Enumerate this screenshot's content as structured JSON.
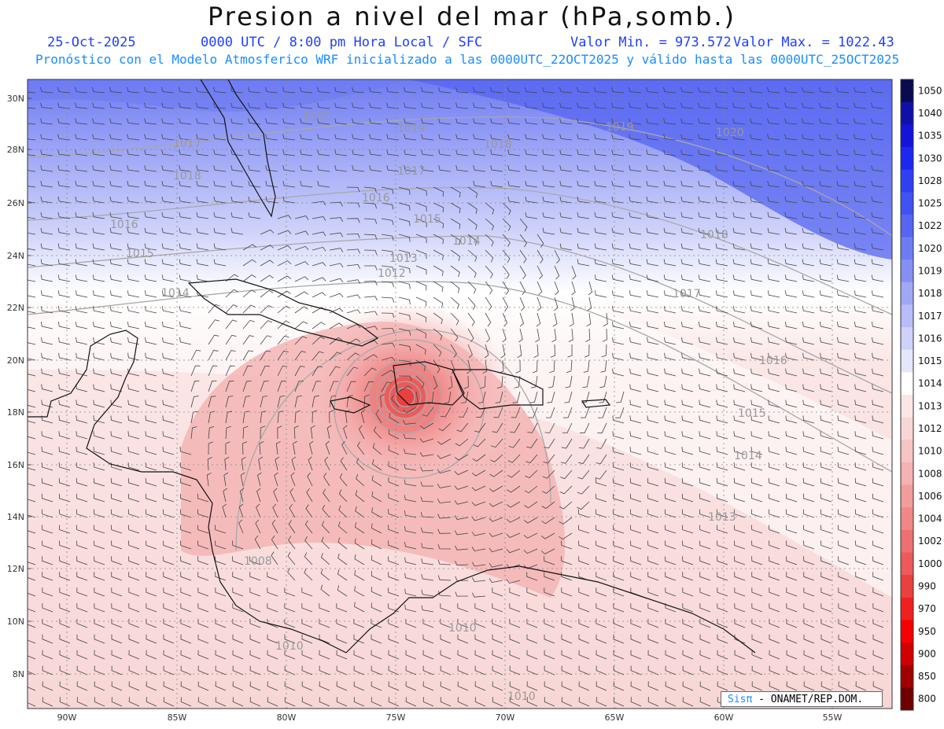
{
  "title": "Presion a nivel del mar (hPa,somb.)",
  "date": "25-Oct-2025",
  "time_info": "0000 UTC / 8:00 pm Hora Local / SFC",
  "min_value": "Valor Min. = 973.572",
  "max_value": "Valor Max. = 1022.43",
  "forecast_line": "Pronóstico con el Modelo Atmosferico WRF inicializado a las 0000UTC_22OCT2025 y válido hasta las  0000UTC_25OCT2025",
  "credit": {
    "brand": "Sisπ",
    "text": " - ONAMET/REP.DOM."
  },
  "lat_labels": [
    "30N",
    "28N",
    "26N",
    "24N",
    "22N",
    "20N",
    "18N",
    "16N",
    "14N",
    "12N",
    "10N",
    "8N"
  ],
  "lon_labels": [
    "90W",
    "85W",
    "80W",
    "75W",
    "70W",
    "65W",
    "60W",
    "55W"
  ],
  "colorbar": [
    {
      "label": "1050",
      "color": "#0a0a50"
    },
    {
      "label": "1040",
      "color": "#1010a8"
    },
    {
      "label": "1035",
      "color": "#1414d8"
    },
    {
      "label": "1030",
      "color": "#1c28f0"
    },
    {
      "label": "1028",
      "color": "#2e40f2"
    },
    {
      "label": "1025",
      "color": "#4052f2"
    },
    {
      "label": "1022",
      "color": "#5666f2"
    },
    {
      "label": "1020",
      "color": "#6e7cf4"
    },
    {
      "label": "1019",
      "color": "#8690f4"
    },
    {
      "label": "1018",
      "color": "#a0a8f6"
    },
    {
      "label": "1017",
      "color": "#b8bcf8"
    },
    {
      "label": "1016",
      "color": "#ced2fa"
    },
    {
      "label": "1015",
      "color": "#e4e6fc"
    },
    {
      "label": "1014",
      "color": "#ffffff"
    },
    {
      "label": "1013",
      "color": "#fbe6e6"
    },
    {
      "label": "1012",
      "color": "#f8d6d6"
    },
    {
      "label": "1010",
      "color": "#f6c4c4"
    },
    {
      "label": "1008",
      "color": "#f4b2b2"
    },
    {
      "label": "1006",
      "color": "#f29c9c"
    },
    {
      "label": "1004",
      "color": "#f08888"
    },
    {
      "label": "1002",
      "color": "#ee7070"
    },
    {
      "label": "1000",
      "color": "#ec5a5a"
    },
    {
      "label": "990",
      "color": "#ea4040"
    },
    {
      "label": "970",
      "color": "#f02020"
    },
    {
      "label": "950",
      "color": "#f40000"
    },
    {
      "label": "900",
      "color": "#d00000"
    },
    {
      "label": "850",
      "color": "#a00000"
    },
    {
      "label": "800",
      "color": "#700000"
    }
  ],
  "isobar_labels": [
    "1020",
    "1019",
    "1018",
    "1020",
    "1019",
    "1018",
    "1017",
    "1016",
    "1015",
    "1014",
    "1013",
    "1012",
    "1008",
    "1010",
    "1010",
    "1010",
    "1013",
    "1014",
    "1015",
    "1016",
    "1017",
    "1018",
    "1016",
    "1015",
    "1014",
    "1017"
  ]
}
